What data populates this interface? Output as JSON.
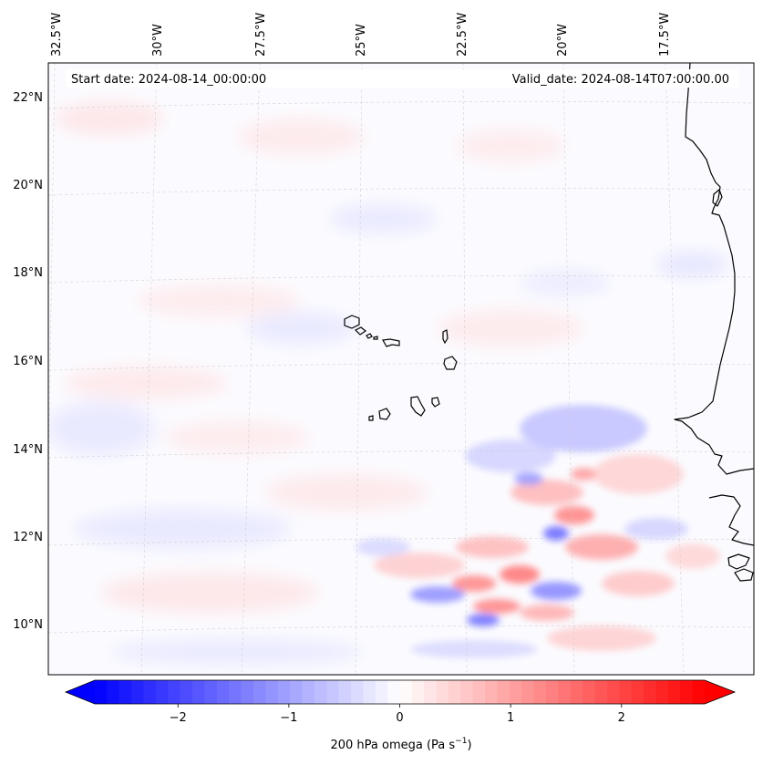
{
  "map": {
    "start_date_label": "Start date: 2024-08-14_00:00:00",
    "valid_date_label": "Valid_date: 2024-08-14T07:00:00.00",
    "lon_labels": [
      "32.5°W",
      "30°W",
      "27.5°W",
      "25°W",
      "22.5°W",
      "20°W",
      "17.5°W"
    ],
    "lat_labels": [
      "22°N",
      "20°N",
      "18°N",
      "16°N",
      "14°N",
      "12°N",
      "10°N"
    ],
    "field": "200 hPa omega",
    "colormap": "bwr",
    "coastline_color": "#000000"
  },
  "colorbar": {
    "label": "200 hPa omega (Pa s",
    "label_exp": "−1",
    "label_close": ")",
    "vmin": -2.75,
    "vmax": 2.75,
    "ticks": [
      {
        "value": -2,
        "label": "−2"
      },
      {
        "value": -1,
        "label": "−1"
      },
      {
        "value": 0,
        "label": "0"
      },
      {
        "value": 1,
        "label": "1"
      },
      {
        "value": 2,
        "label": "2"
      }
    ],
    "extend": "both"
  }
}
